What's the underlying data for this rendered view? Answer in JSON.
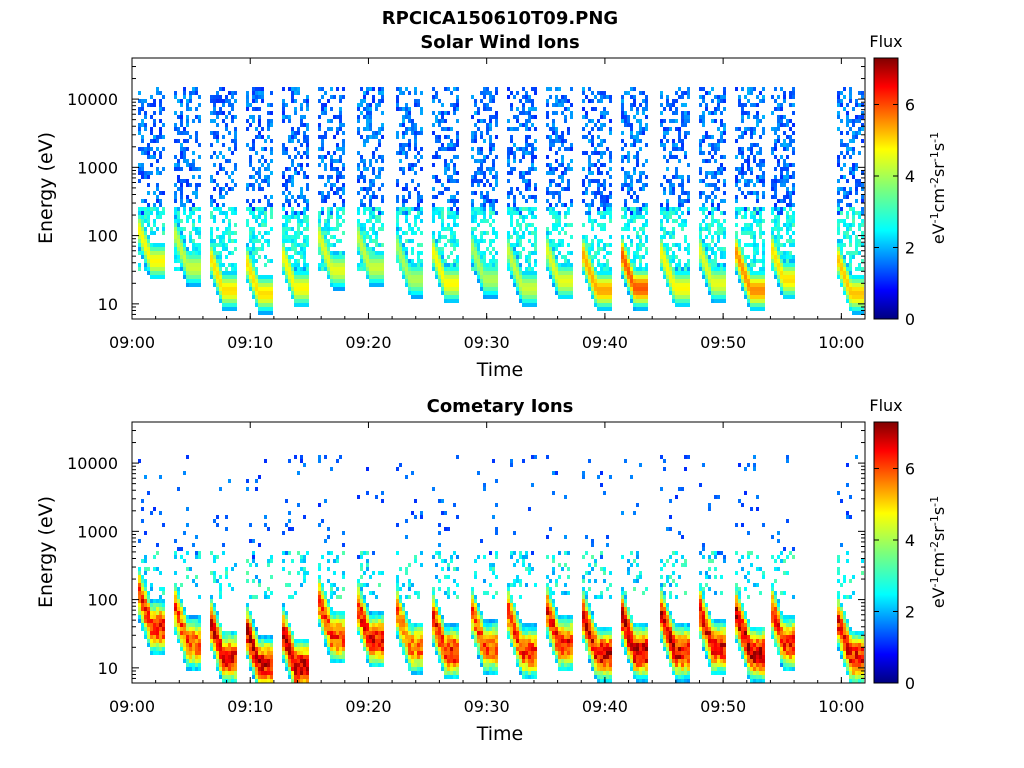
{
  "figure": {
    "title": "RPCICA150610T09.PNG"
  },
  "chart_data": [
    {
      "type": "heatmap",
      "title": "Solar Wind Ions",
      "xlabel": "Time",
      "ylabel": "Energy (eV)",
      "x_ticks": [
        "09:00",
        "09:10",
        "09:20",
        "09:30",
        "09:40",
        "09:50",
        "10:00"
      ],
      "y_ticks": [
        "10",
        "100",
        "1000",
        "10000"
      ],
      "y_scale": "log",
      "y_range": [
        6,
        40000
      ],
      "x_range_min": [
        0,
        62
      ],
      "colorbar": {
        "label": "Flux",
        "unit": "eV-1cm-2sr-1s-1",
        "ticks": [
          "0",
          "2",
          "4",
          "6"
        ],
        "range": [
          0,
          7.3
        ]
      },
      "spectra_start_min": [
        0.3,
        3.4,
        6.4,
        9.4,
        12.5,
        15.6,
        18.8,
        22.2,
        25.2,
        28.5,
        31.7,
        34.8,
        38.0,
        41.2,
        44.6,
        47.8,
        51.0,
        53.8,
        59.5
      ],
      "peak_energy_eV": [
        75,
        60,
        28,
        25,
        30,
        55,
        60,
        40,
        35,
        40,
        30,
        38,
        28,
        30,
        30,
        35,
        28,
        40,
        25
      ],
      "peak_flux": [
        4.6,
        4.2,
        4.8,
        4.8,
        4.6,
        4.4,
        4.2,
        4.0,
        4.6,
        4.0,
        4.2,
        4.4,
        5.2,
        5.8,
        4.6,
        4.4,
        5.4,
        4.8,
        5.0
      ],
      "data_gap_min": [
        56,
        59.5
      ],
      "grid": false
    },
    {
      "type": "heatmap",
      "title": "Cometary Ions",
      "xlabel": "Time",
      "ylabel": "Energy (eV)",
      "x_ticks": [
        "09:00",
        "09:10",
        "09:20",
        "09:30",
        "09:40",
        "09:50",
        "10:00"
      ],
      "y_ticks": [
        "10",
        "100",
        "1000",
        "10000"
      ],
      "y_scale": "log",
      "y_range": [
        6,
        40000
      ],
      "x_range_min": [
        0,
        62
      ],
      "colorbar": {
        "label": "Flux",
        "unit": "eV-1cm-2sr-1s-1",
        "ticks": [
          "0",
          "2",
          "4",
          "6"
        ],
        "range": [
          0,
          7.3
        ]
      },
      "spectra_start_min": [
        0.3,
        3.4,
        6.4,
        9.4,
        12.5,
        15.6,
        18.8,
        22.2,
        25.2,
        28.5,
        31.7,
        34.8,
        38.0,
        41.2,
        44.6,
        47.8,
        51.0,
        53.8,
        59.5
      ],
      "peak_energy_eV": [
        70,
        40,
        25,
        20,
        18,
        50,
        45,
        35,
        30,
        35,
        30,
        40,
        28,
        30,
        30,
        35,
        28,
        40,
        25
      ],
      "peak_flux": [
        6.4,
        6.0,
        6.6,
        6.8,
        7.0,
        6.2,
        6.6,
        5.8,
        6.6,
        6.0,
        6.2,
        6.4,
        6.8,
        7.0,
        6.8,
        6.6,
        7.0,
        6.4,
        6.6
      ],
      "data_gap_min": [
        56,
        59.5
      ],
      "grid": false
    }
  ]
}
